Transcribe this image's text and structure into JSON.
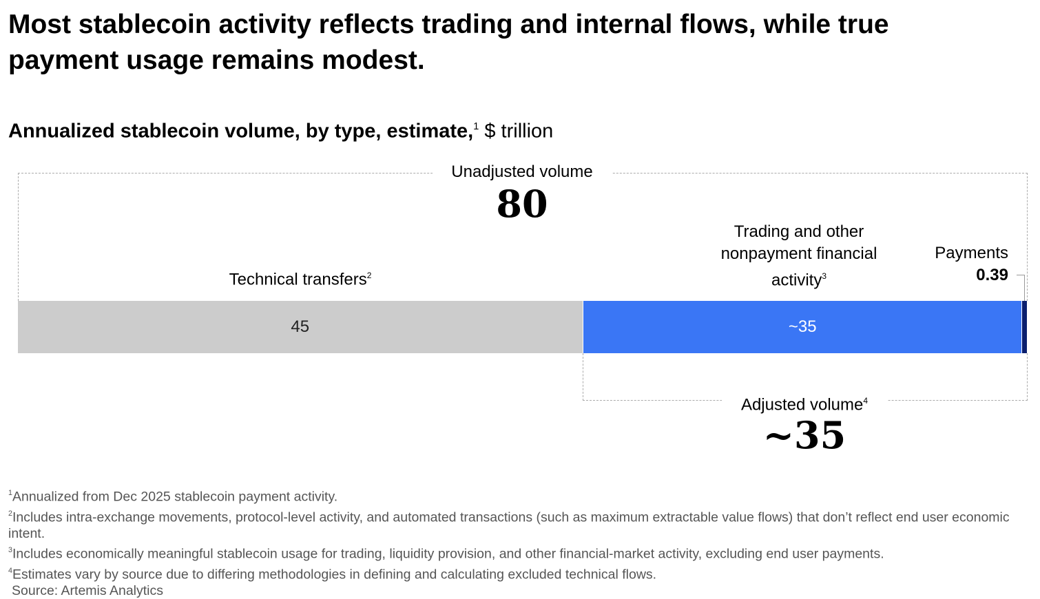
{
  "title": "Most stablecoin activity reflects trading and internal flows, while true payment usage remains modest.",
  "chart_data": {
    "type": "bar",
    "orientation": "horizontal-stacked",
    "title": "Annualized stablecoin volume, by type, estimate,",
    "title_note": "1",
    "unit": "$ trillion",
    "categories": [
      "Technical transfers",
      "Trading and other nonpayment financial activity",
      "Payments"
    ],
    "label_notes": [
      "2",
      "3",
      ""
    ],
    "values": [
      45,
      35,
      0.39
    ],
    "value_labels": [
      "45",
      "~35",
      "0.39"
    ],
    "colors": [
      "#cccccc",
      "#3a76f5",
      "#0b1f6e"
    ],
    "unadjusted": {
      "label": "Unadjusted volume",
      "value": "80"
    },
    "adjusted": {
      "label": "Adjusted volume",
      "note": "4",
      "value": "~35"
    }
  },
  "footnotes": [
    {
      "mark": "1",
      "text": "Annualized from Dec 2025 stablecoin payment activity."
    },
    {
      "mark": "2",
      "text": "Includes intra-exchange movements, protocol-level activity, and automated transactions (such as maximum extractable value flows) that don’t reflect end user economic intent."
    },
    {
      "mark": "3",
      "text": "Includes economically meaningful stablecoin usage for trading, liquidity provision, and other financial-market activity, excluding end user payments."
    },
    {
      "mark": "4",
      "text": "Estimates vary by source due to differing methodologies in defining and calculating excluded technical flows."
    }
  ],
  "source": "Source: Artemis Analytics"
}
